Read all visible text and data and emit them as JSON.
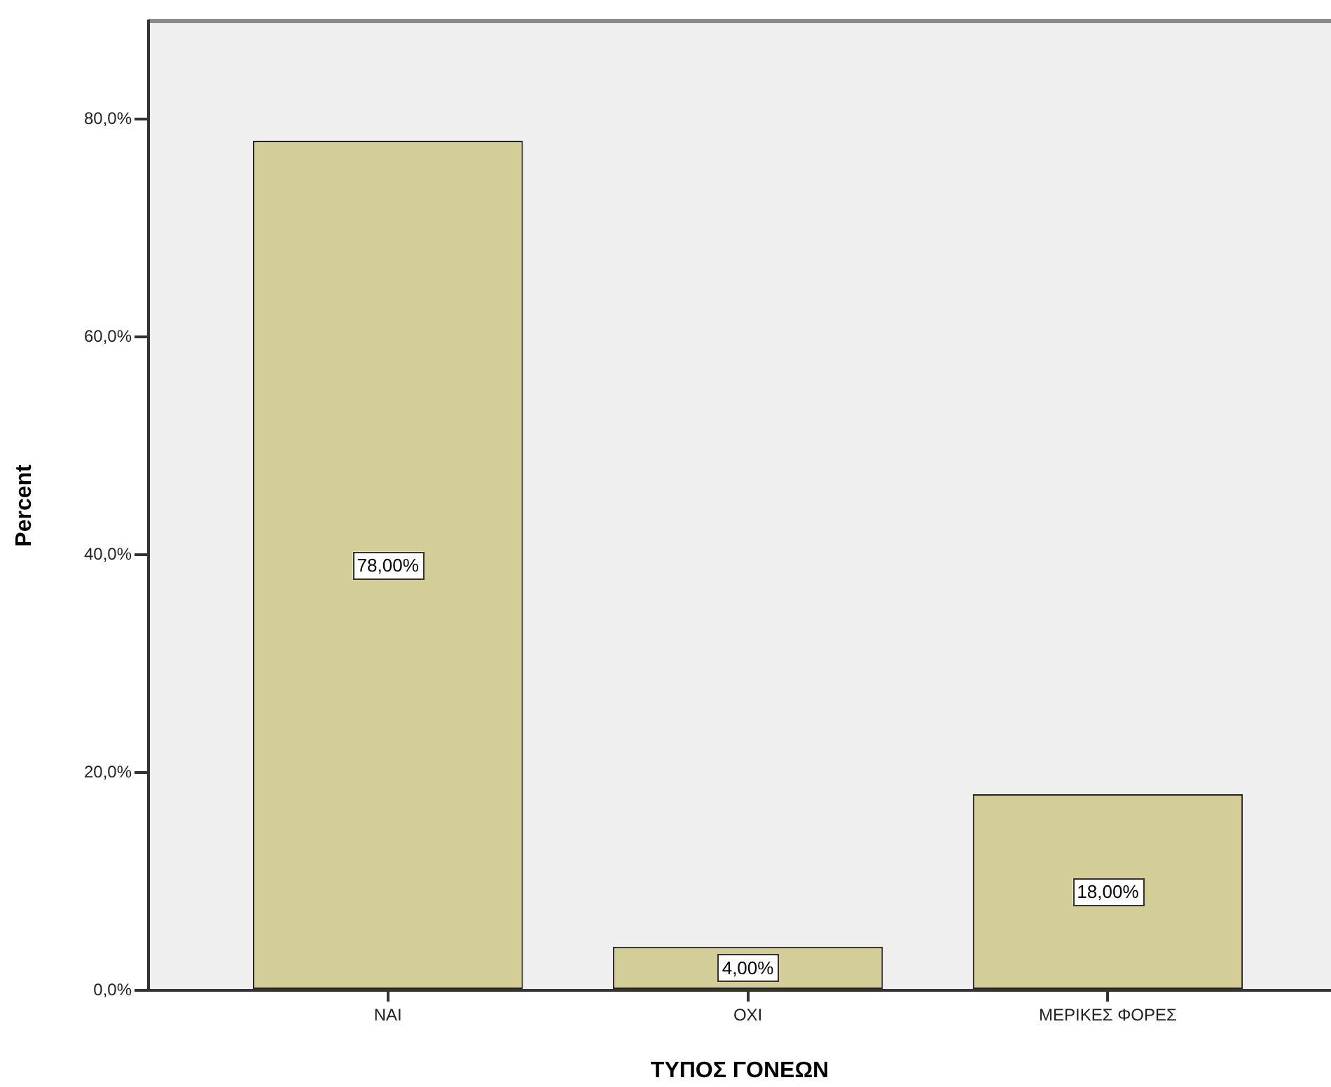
{
  "chart_data": {
    "type": "bar",
    "xlabel": "ΤΥΠΟΣ ΓΟΝΕΩΝ",
    "ylabel": "Percent",
    "categories": [
      "ΝΑΙ",
      "ΟΧΙ",
      "ΜΕΡΙΚΕΣ ΦΟΡΕΣ"
    ],
    "values": [
      78,
      4,
      18
    ],
    "value_labels": [
      "78,00%",
      "4,00%",
      "18,00%"
    ],
    "color": "#d3ce98",
    "ylim": [
      0,
      89
    ],
    "yticks": [
      {
        "value": 0,
        "label": "0,0%"
      },
      {
        "value": 20,
        "label": "20,0%"
      },
      {
        "value": 40,
        "label": "40,0%"
      },
      {
        "value": 60,
        "label": "60,0%"
      },
      {
        "value": 80,
        "label": "80,0%"
      }
    ]
  }
}
